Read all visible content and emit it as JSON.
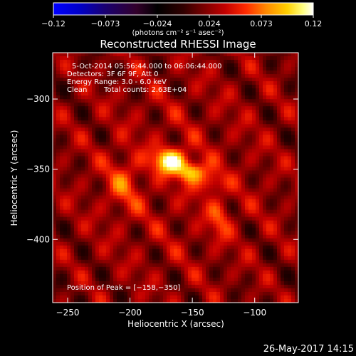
{
  "chart_data": {
    "type": "heatmap",
    "title": "Reconstructed RHESSI Image",
    "xlabel": "Heliocentric X (arcsec)",
    "ylabel": "Heliocentric Y (arcsec)",
    "xlim": [
      -262,
      -65
    ],
    "ylim": [
      -445,
      -267
    ],
    "x_ticks": [
      -250,
      -200,
      -150,
      -100
    ],
    "y_ticks": [
      -400,
      -350,
      -300
    ],
    "x_tick_labels": [
      "−250",
      "−200",
      "−150",
      "−100"
    ],
    "y_tick_labels": [
      "−400",
      "−350",
      "−300"
    ],
    "colorbar": {
      "min": -0.12,
      "max": 0.12,
      "ticks": [
        -0.12,
        -0.073,
        -0.024,
        0.024,
        0.073,
        0.12
      ],
      "tick_labels": [
        "−0.12",
        "−0.073",
        "−0.024",
        "0.024",
        "0.073",
        "0.12"
      ],
      "unit_label": "(photons cm⁻² s⁻¹ asec⁻²)"
    },
    "peak": {
      "x": -158,
      "y": -350
    },
    "source_blobs": [
      {
        "x": -168,
        "y": -344,
        "sx": 9,
        "sy": 6,
        "amp": 0.092
      },
      {
        "x": -150,
        "y": -352,
        "sx": 8,
        "sy": 5,
        "amp": 0.07
      },
      {
        "x": -135,
        "y": -360,
        "sx": 6,
        "sy": 5,
        "amp": 0.04
      },
      {
        "x": -205,
        "y": -360,
        "sx": 10,
        "sy": 14,
        "amp": 0.03
      },
      {
        "x": -128,
        "y": -385,
        "sx": 6,
        "sy": 10,
        "amp": 0.032
      }
    ],
    "annotations": [
      "5-Oct-2014 05:56:44.000 to 06:06:44.000",
      "Detectors: 3F 6F 9F, Att 0",
      "Energy Range: 3.0 - 6.0 keV",
      "Clean",
      "Total counts: 2.63E+04"
    ],
    "peak_label": "Position of Peak = [−158,−350]"
  },
  "footer": {
    "timestamp": "26-May-2017 14:15"
  },
  "colors": {
    "background": "#000000",
    "text": "#ffffff"
  }
}
